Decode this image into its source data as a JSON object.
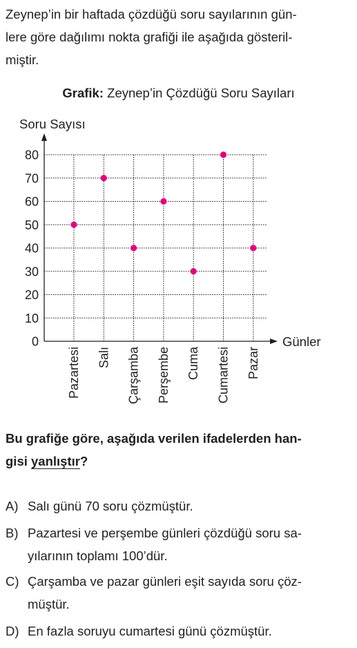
{
  "intro": {
    "line1": "Zeynep’in bir haftada çözdüğü soru sayılarının gün-",
    "line2": "lere göre dağılımı nokta grafiği ile aşağıda gösteril-",
    "line3": "miştir."
  },
  "chart_title": {
    "prefix": "Grafik:",
    "text": "Zeynep’in Çözdüğü Soru Sayıları"
  },
  "chart_data": {
    "type": "scatter",
    "title": "Grafik: Zeynep’in Çözdüğü Soru Sayıları",
    "xlabel": "Günler",
    "ylabel": "Soru Sayısı",
    "categories": [
      "Pazartesi",
      "Salı",
      "Çarşamba",
      "Perşembe",
      "Cuma",
      "Cumartesi",
      "Pazar"
    ],
    "values": [
      50,
      70,
      40,
      60,
      30,
      80,
      40
    ],
    "y_ticks": [
      0,
      10,
      20,
      30,
      40,
      50,
      60,
      70,
      80
    ],
    "ylim": [
      0,
      80
    ],
    "grid": true,
    "point_color": "#e6007e"
  },
  "question": {
    "part1": "Bu grafiğe göre, aşağıda verilen ifadelerden han-",
    "part2": "gisi",
    "underlined": "yanlıştır",
    "qmark": "?"
  },
  "options": [
    {
      "letter": "A)",
      "lines": [
        "Salı günü 70 soru çözmüştür."
      ]
    },
    {
      "letter": "B)",
      "lines": [
        "Pazartesi ve perşembe günleri çözdüğü soru sa-",
        "yılarının toplamı 100’dür."
      ]
    },
    {
      "letter": "C)",
      "lines": [
        "Çarşamba ve pazar günleri eşit sayıda soru çöz-",
        "müştür."
      ]
    },
    {
      "letter": "D)",
      "lines": [
        "En fazla soruyu cumartesi günü çözmüştür."
      ]
    }
  ]
}
